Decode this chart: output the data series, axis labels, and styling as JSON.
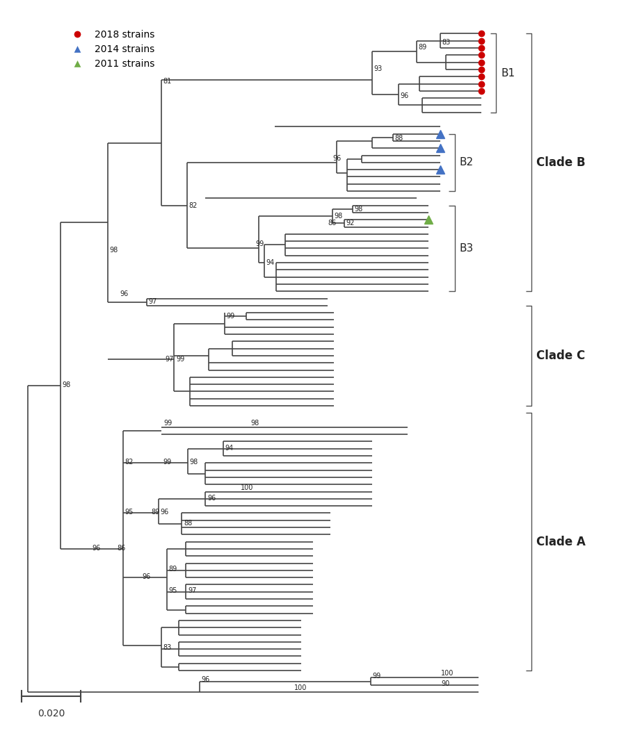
{
  "scale_bar_label": "0.020",
  "legend_items": [
    {
      "label": "2018 strains",
      "color": "#cc0000",
      "marker": "o"
    },
    {
      "label": "2014 strains",
      "color": "#4472c4",
      "marker": "^"
    },
    {
      "label": "2011 strains",
      "color": "#70ad47",
      "marker": "^"
    }
  ],
  "background_color": "#ffffff",
  "line_color": "#444444",
  "line_width": 1.2
}
